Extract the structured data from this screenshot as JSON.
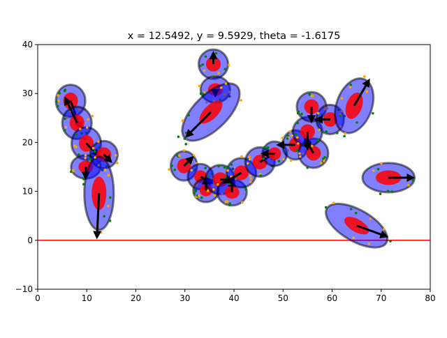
{
  "chart_data": {
    "type": "scatter",
    "title": "x = 12.5492, y = 9.5929, theta = -1.6175",
    "xlabel": "",
    "ylabel": "",
    "xlim": [
      0,
      80
    ],
    "ylim": [
      -10,
      40
    ],
    "xticks": [
      "0",
      "10",
      "20",
      "30",
      "40",
      "50",
      "60",
      "70",
      "80"
    ],
    "yticks": [
      "−10",
      "0",
      "10",
      "20",
      "30",
      "40"
    ],
    "grid": false,
    "reference_line": {
      "y": 0,
      "color": "#ff0000"
    },
    "colors": {
      "outer_fill": "#0000ff",
      "outer_stroke": "#000000",
      "inner_fill": "#ff0000",
      "arrow": "#000000",
      "point_green": "#008000",
      "point_orange": "#ffa500"
    },
    "particles": [
      {
        "x": 6.7,
        "y": 28.5,
        "or": [
          3.0,
          3.3,
          0
        ],
        "ir": [
          1.5,
          1.7,
          0
        ],
        "heading": -70,
        "len": 6.0
      },
      {
        "x": 8.0,
        "y": 24.0,
        "or": [
          3.0,
          3.3,
          0
        ],
        "ir": [
          1.5,
          1.7,
          0
        ],
        "heading": 115,
        "len": 5.5
      },
      {
        "x": 9.9,
        "y": 19.8,
        "or": [
          3.0,
          3.3,
          0
        ],
        "ir": [
          1.5,
          1.7,
          0
        ],
        "heading": -45,
        "len": 3.5
      },
      {
        "x": 9.8,
        "y": 15.0,
        "or": [
          3.0,
          2.4,
          0
        ],
        "ir": [
          1.5,
          1.3,
          0
        ],
        "heading": -90,
        "len": 2.3
      },
      {
        "x": 13.5,
        "y": 17.5,
        "or": [
          2.8,
          2.8,
          0
        ],
        "ir": [
          1.5,
          1.5,
          0
        ],
        "heading": -45,
        "len": 2.0
      },
      {
        "x": 12.5,
        "y": 9.6,
        "or": [
          3.0,
          7.5,
          0
        ],
        "ir": [
          1.5,
          3.4,
          0
        ],
        "heading": -92.7,
        "len": 9.0
      },
      {
        "x": 35.8,
        "y": 36.0,
        "or": [
          3.0,
          3.0,
          0
        ],
        "ir": [
          1.5,
          1.5,
          0
        ],
        "heading": 90,
        "len": 2.3
      },
      {
        "x": 36.2,
        "y": 30.8,
        "or": [
          3.0,
          2.7,
          0
        ],
        "ir": [
          1.5,
          1.3,
          0
        ],
        "heading": -90,
        "len": 1.2
      },
      {
        "x": 35.3,
        "y": 26.2,
        "or": [
          7.5,
          3.5,
          45
        ],
        "ir": [
          3.0,
          1.4,
          45
        ],
        "heading": -135,
        "len": 7.0
      },
      {
        "x": 29.8,
        "y": 15.2,
        "or": [
          2.7,
          3.0,
          0
        ],
        "ir": [
          1.4,
          1.5,
          0
        ],
        "heading": 45,
        "len": 2.5
      },
      {
        "x": 33.2,
        "y": 13.0,
        "or": [
          2.6,
          2.6,
          0
        ],
        "ir": [
          1.3,
          1.3,
          0
        ],
        "heading": -30,
        "len": 2.5
      },
      {
        "x": 34.3,
        "y": 10.2,
        "or": [
          2.6,
          2.4,
          0
        ],
        "ir": [
          1.3,
          1.2,
          0
        ],
        "heading": 90,
        "len": 2.5
      },
      {
        "x": 37.2,
        "y": 12.4,
        "or": [
          3.0,
          3.0,
          0
        ],
        "ir": [
          1.5,
          1.5,
          0
        ],
        "heading": 0,
        "len": 3.0
      },
      {
        "x": 39.6,
        "y": 9.8,
        "or": [
          3.0,
          2.7,
          0
        ],
        "ir": [
          1.5,
          1.3,
          0
        ],
        "heading": 90,
        "len": 2.5
      },
      {
        "x": 41.5,
        "y": 13.8,
        "or": [
          3.0,
          3.0,
          0
        ],
        "ir": [
          1.5,
          1.5,
          0
        ],
        "heading": -150,
        "len": 4.0
      },
      {
        "x": 45.3,
        "y": 16.0,
        "or": [
          3.0,
          3.0,
          0
        ],
        "ir": [
          1.5,
          1.5,
          0
        ],
        "heading": 30,
        "len": 3.5
      },
      {
        "x": 48.3,
        "y": 17.7,
        "or": [
          2.5,
          2.5,
          0
        ],
        "ir": [
          1.3,
          1.3,
          0
        ],
        "heading": 180,
        "len": 2.5
      },
      {
        "x": 52.5,
        "y": 19.5,
        "or": [
          2.6,
          3.0,
          0
        ],
        "ir": [
          1.3,
          1.5,
          0
        ],
        "heading": 180,
        "len": 3.5
      },
      {
        "x": 56.2,
        "y": 17.8,
        "or": [
          3.0,
          3.0,
          0
        ],
        "ir": [
          1.5,
          1.5,
          0
        ],
        "heading": 120,
        "len": 3.5
      },
      {
        "x": 55.0,
        "y": 22.2,
        "or": [
          3.0,
          3.0,
          0
        ],
        "ir": [
          1.5,
          1.5,
          0
        ],
        "heading": -90,
        "len": 3.5
      },
      {
        "x": 55.8,
        "y": 27.3,
        "or": [
          3.0,
          3.0,
          0
        ],
        "ir": [
          1.5,
          1.5,
          0
        ],
        "heading": -90,
        "len": 3.0
      },
      {
        "x": 59.6,
        "y": 24.7,
        "or": [
          2.8,
          3.0,
          0
        ],
        "ir": [
          1.4,
          1.5,
          0
        ],
        "heading": 180,
        "len": 2.8
      },
      {
        "x": 64.5,
        "y": 27.5,
        "or": [
          3.6,
          5.8,
          -20
        ],
        "ir": [
          1.6,
          2.8,
          -20
        ],
        "heading": 60,
        "len": 6.0
      },
      {
        "x": 71.5,
        "y": 12.8,
        "or": [
          5.3,
          3.0,
          0
        ],
        "ir": [
          2.6,
          1.5,
          0
        ],
        "heading": 0,
        "len": 5.0
      },
      {
        "x": 65.0,
        "y": 3.0,
        "or": [
          7.0,
          3.2,
          -30
        ],
        "ir": [
          2.8,
          1.3,
          -30
        ],
        "heading": -20,
        "len": 6.5
      }
    ]
  }
}
